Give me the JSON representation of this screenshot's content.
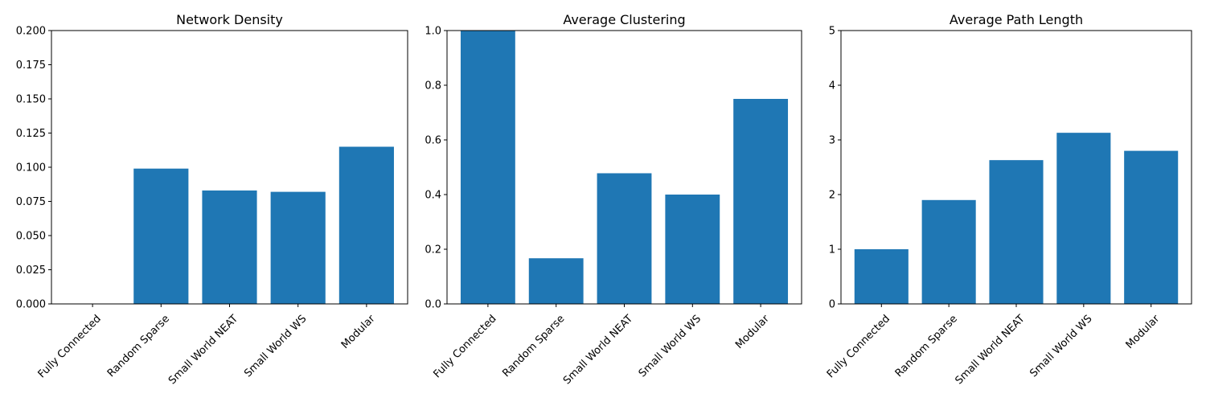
{
  "chart_data": [
    {
      "type": "bar",
      "title": "Network Density",
      "categories": [
        "Fully Connected",
        "Random Sparse",
        "Small World NEAT",
        "Small World WS",
        "Modular"
      ],
      "values": [
        0.0,
        0.099,
        0.083,
        0.082,
        0.115
      ],
      "ylim": [
        0,
        0.2
      ],
      "yticks": [
        "0.000",
        "0.025",
        "0.050",
        "0.075",
        "0.100",
        "0.125",
        "0.150",
        "0.175",
        "0.200"
      ],
      "ytick_values": [
        0,
        0.025,
        0.05,
        0.075,
        0.1,
        0.125,
        0.15,
        0.175,
        0.2
      ],
      "xlabel": "",
      "ylabel": "",
      "grid": false
    },
    {
      "type": "bar",
      "title": "Average Clustering",
      "categories": [
        "Fully Connected",
        "Random Sparse",
        "Small World NEAT",
        "Small World WS",
        "Modular"
      ],
      "values": [
        1.0,
        0.167,
        0.478,
        0.4,
        0.75
      ],
      "ylim": [
        0,
        1.0
      ],
      "yticks": [
        "0.0",
        "0.2",
        "0.4",
        "0.6",
        "0.8",
        "1.0"
      ],
      "ytick_values": [
        0,
        0.2,
        0.4,
        0.6,
        0.8,
        1.0
      ],
      "xlabel": "",
      "ylabel": "",
      "grid": false
    },
    {
      "type": "bar",
      "title": "Average Path Length",
      "categories": [
        "Fully Connected",
        "Random Sparse",
        "Small World NEAT",
        "Small World WS",
        "Modular"
      ],
      "values": [
        1.0,
        1.9,
        2.63,
        3.13,
        2.8
      ],
      "ylim": [
        0,
        5
      ],
      "yticks": [
        "0",
        "1",
        "2",
        "3",
        "4",
        "5"
      ],
      "ytick_values": [
        0,
        1,
        2,
        3,
        4,
        5
      ],
      "xlabel": "",
      "ylabel": "",
      "grid": false
    }
  ],
  "colors": {
    "bar": "#1f77b4"
  }
}
